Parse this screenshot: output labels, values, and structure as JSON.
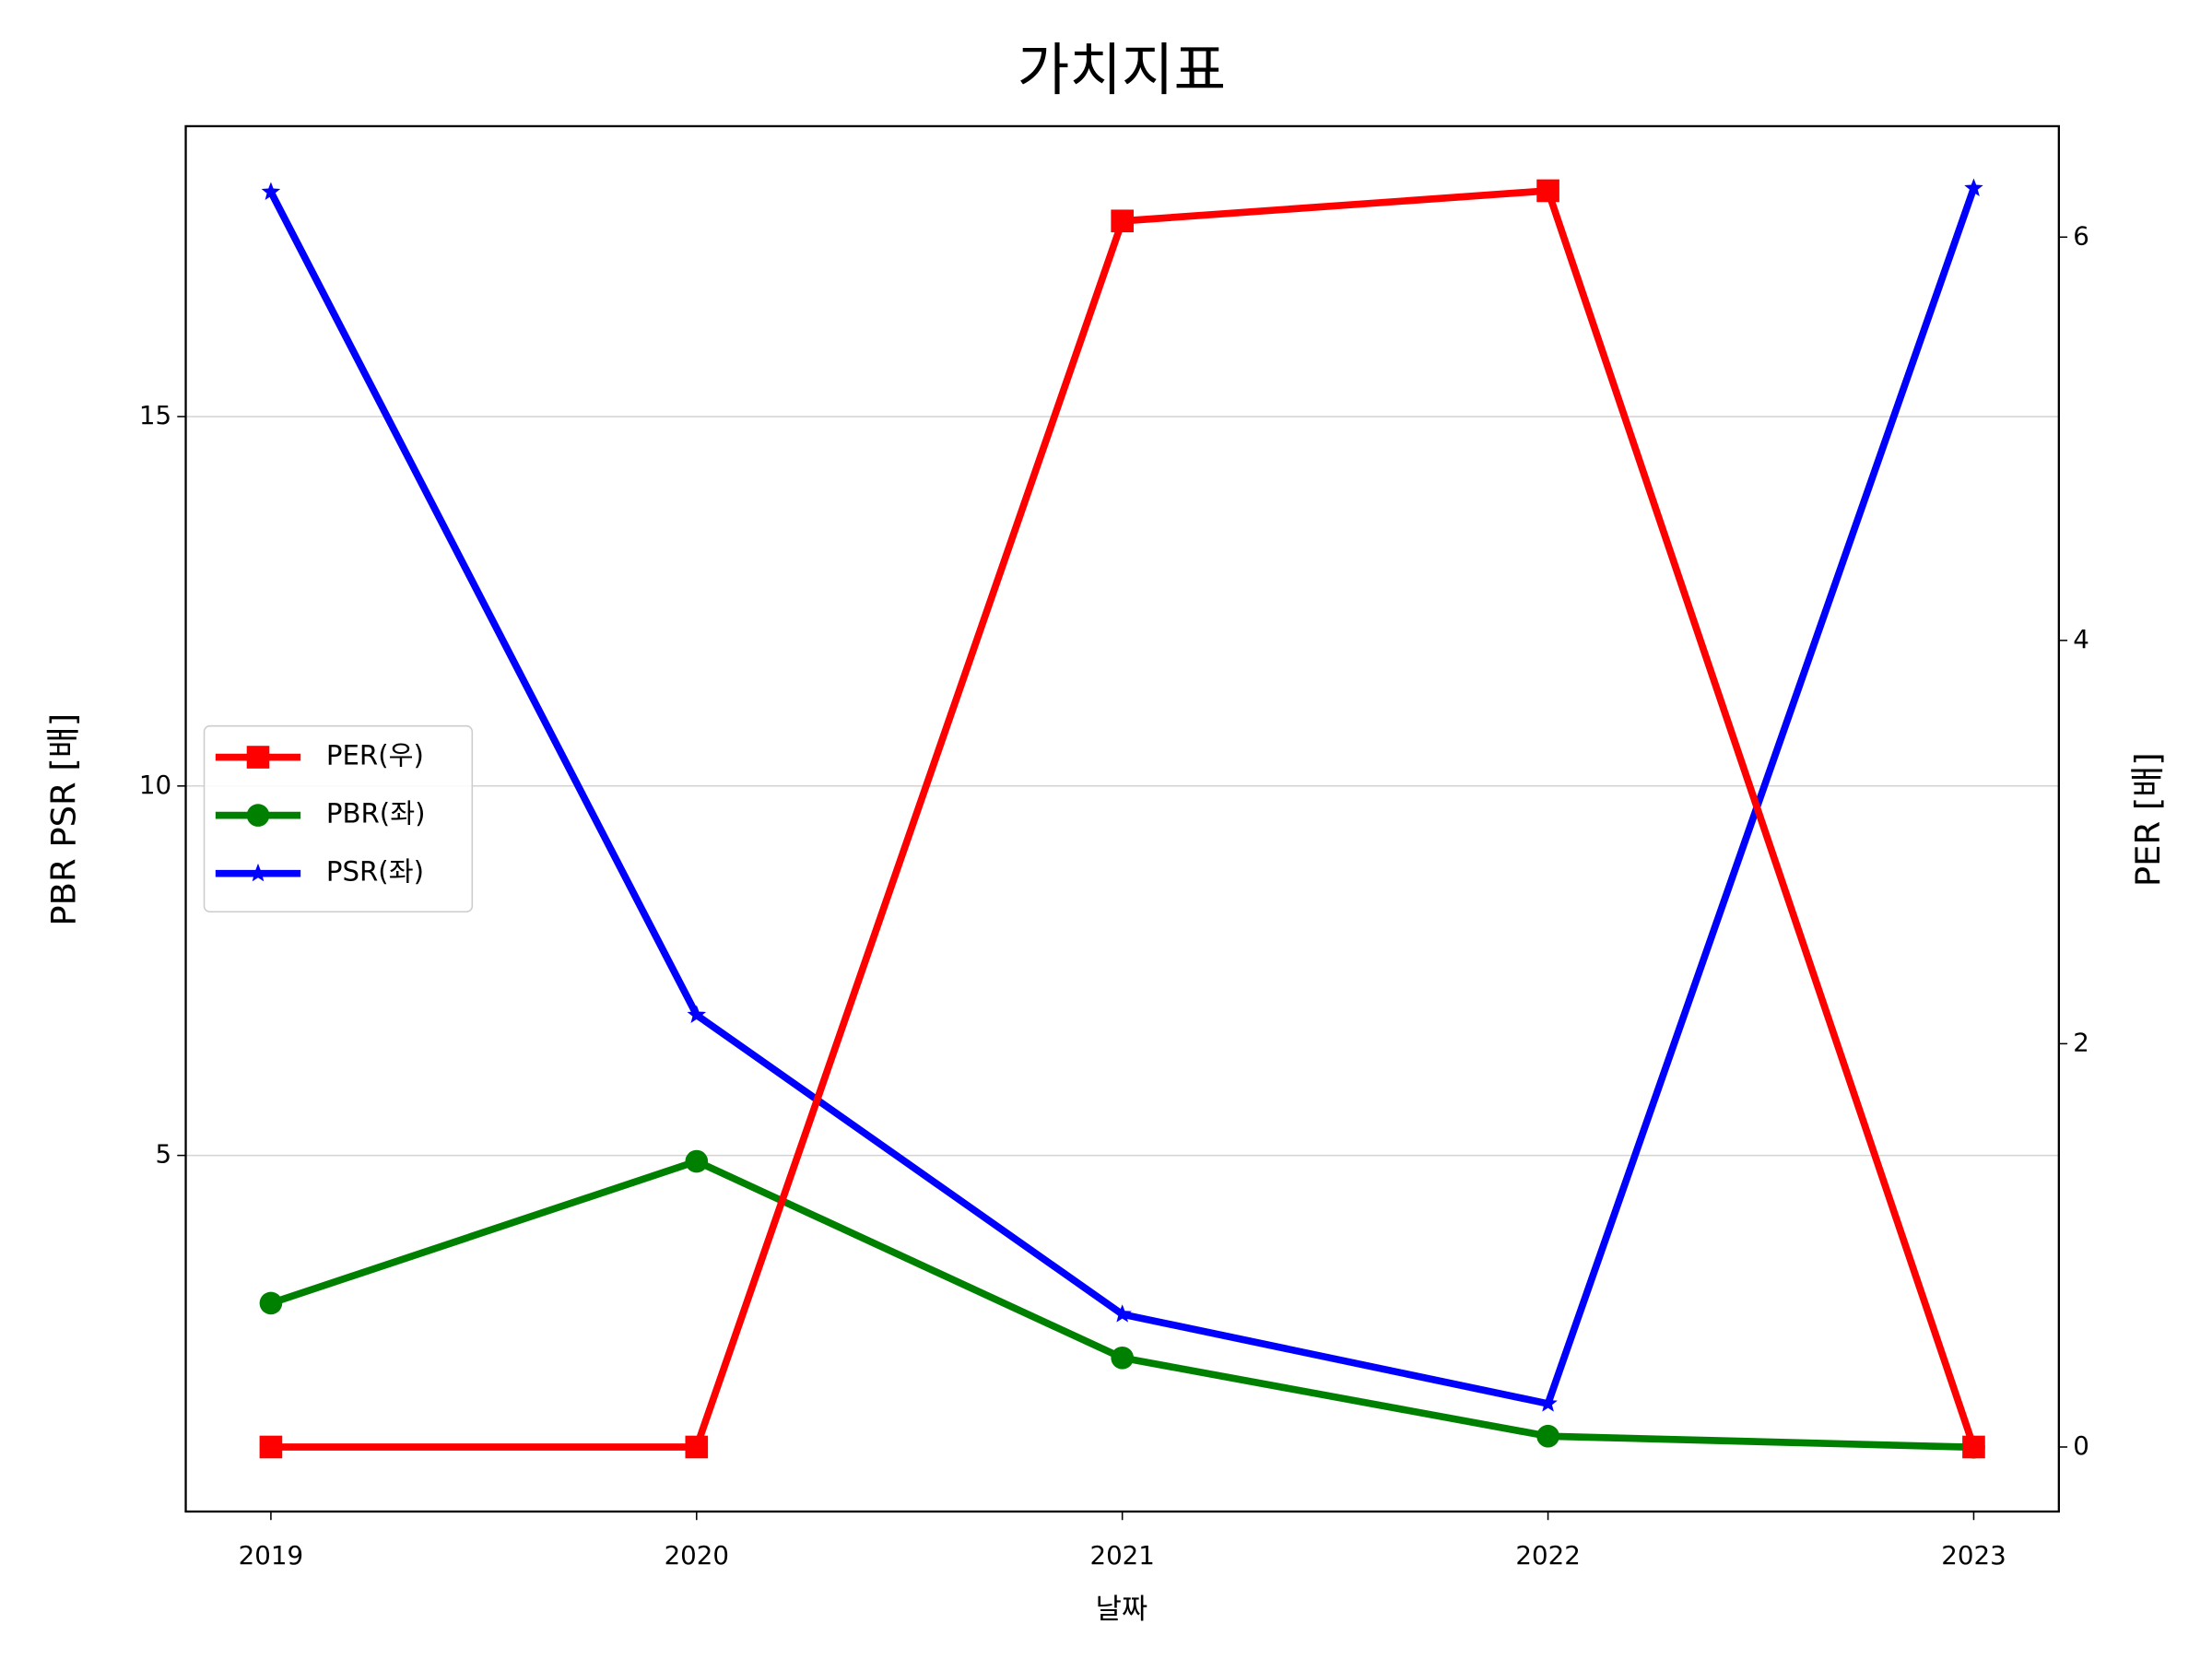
{
  "chart_data": {
    "type": "line",
    "title": "가치지표",
    "xlabel": "날짜",
    "ylabel": "PBR PSR [배]",
    "ylabel_color": "#008000",
    "y2label": "PER [배]",
    "y2label_color": "#ff0000",
    "x": [
      2019,
      2020,
      2021,
      2022,
      2023
    ],
    "xlim": [
      2018.8,
      2023.2
    ],
    "xticks": [
      2019,
      2020,
      2021,
      2022,
      2023
    ],
    "ylim": [
      0.18,
      18.93
    ],
    "yticks": [
      5,
      10,
      15
    ],
    "y2lim": [
      -0.32,
      6.55
    ],
    "y2ticks": [
      0,
      2,
      4,
      6
    ],
    "grid": true,
    "legend": "center left",
    "series": [
      {
        "name": "PER(우)",
        "color": "#ff0000",
        "marker": "square",
        "axis": "y2",
        "values": [
          0,
          0,
          6.08,
          6.23,
          0
        ]
      },
      {
        "name": "PBR(좌)",
        "color": "#008000",
        "marker": "circle",
        "values": [
          3.0,
          4.92,
          2.26,
          1.2,
          1.05
        ]
      },
      {
        "name": "PSR(좌)",
        "color": "#0000ff",
        "marker": "star",
        "values": [
          18.04,
          6.9,
          2.85,
          1.64,
          18.09
        ]
      }
    ]
  }
}
